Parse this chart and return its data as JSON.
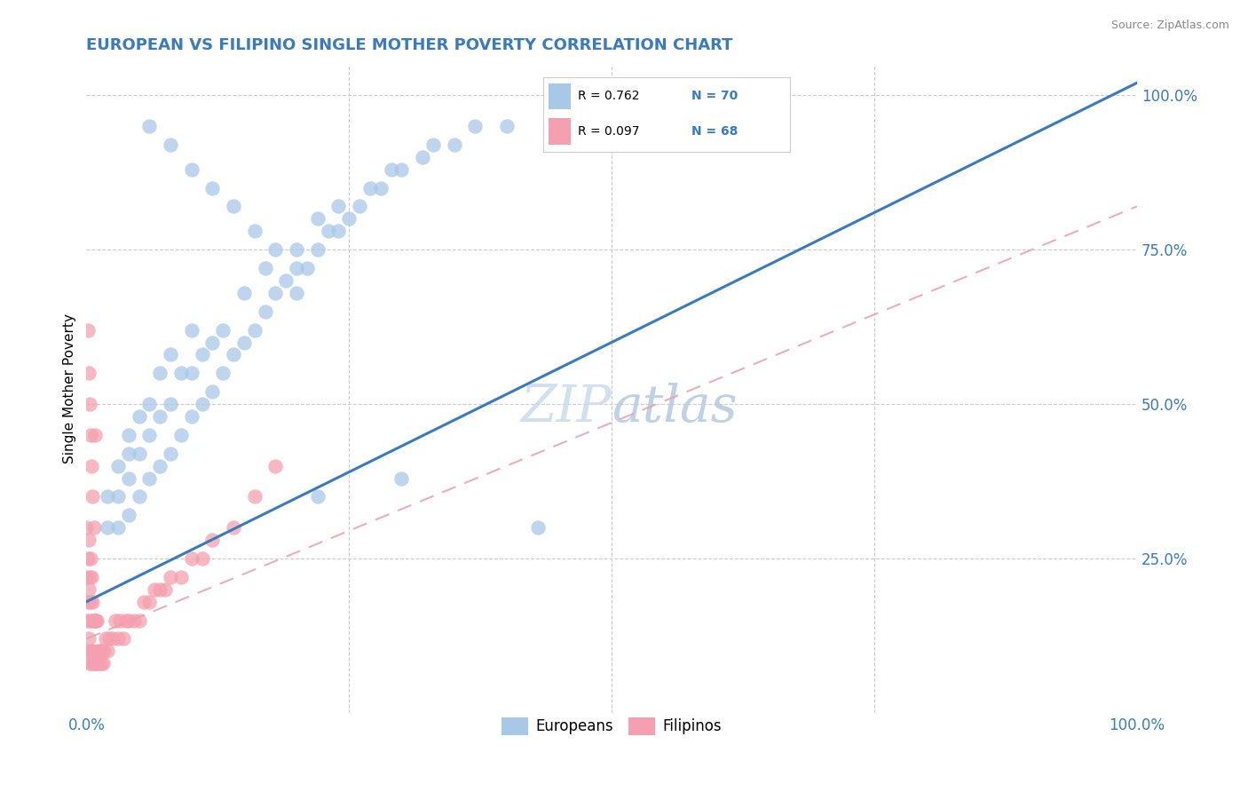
{
  "title": "EUROPEAN VS FILIPINO SINGLE MOTHER POVERTY CORRELATION CHART",
  "source": "Source: ZipAtlas.com",
  "ylabel": "Single Mother Poverty",
  "title_color": "#3a7abf",
  "tick_color": "#3a7abf",
  "watermark_color": "#ccdcee",
  "european_color": "#a8c8e8",
  "filipino_color": "#f5a0b0",
  "trend_blue": "#3a7abf",
  "trend_pink": "#e8a0b0",
  "eu_x": [
    0.02,
    0.02,
    0.03,
    0.03,
    0.03,
    0.04,
    0.04,
    0.04,
    0.04,
    0.05,
    0.05,
    0.05,
    0.06,
    0.06,
    0.06,
    0.07,
    0.07,
    0.07,
    0.08,
    0.08,
    0.08,
    0.09,
    0.09,
    0.1,
    0.1,
    0.1,
    0.11,
    0.11,
    0.12,
    0.12,
    0.13,
    0.13,
    0.14,
    0.15,
    0.15,
    0.16,
    0.17,
    0.17,
    0.18,
    0.19,
    0.2,
    0.2,
    0.21,
    0.22,
    0.22,
    0.23,
    0.24,
    0.24,
    0.25,
    0.26,
    0.27,
    0.28,
    0.29,
    0.3,
    0.32,
    0.33,
    0.35,
    0.37,
    0.4,
    0.43,
    0.06,
    0.08,
    0.1,
    0.12,
    0.14,
    0.16,
    0.18,
    0.2,
    0.22,
    0.3
  ],
  "eu_y": [
    0.3,
    0.35,
    0.3,
    0.35,
    0.4,
    0.32,
    0.38,
    0.42,
    0.45,
    0.35,
    0.42,
    0.48,
    0.38,
    0.45,
    0.5,
    0.4,
    0.48,
    0.55,
    0.42,
    0.5,
    0.58,
    0.45,
    0.55,
    0.48,
    0.55,
    0.62,
    0.5,
    0.58,
    0.52,
    0.6,
    0.55,
    0.62,
    0.58,
    0.6,
    0.68,
    0.62,
    0.65,
    0.72,
    0.68,
    0.7,
    0.68,
    0.75,
    0.72,
    0.75,
    0.8,
    0.78,
    0.78,
    0.82,
    0.8,
    0.82,
    0.85,
    0.85,
    0.88,
    0.88,
    0.9,
    0.92,
    0.92,
    0.95,
    0.95,
    0.3,
    0.95,
    0.92,
    0.88,
    0.85,
    0.82,
    0.78,
    0.75,
    0.72,
    0.35,
    0.38
  ],
  "fil_x": [
    0.0,
    0.0,
    0.0,
    0.001,
    0.001,
    0.001,
    0.002,
    0.002,
    0.002,
    0.003,
    0.003,
    0.003,
    0.004,
    0.004,
    0.004,
    0.005,
    0.005,
    0.005,
    0.006,
    0.006,
    0.007,
    0.007,
    0.008,
    0.008,
    0.009,
    0.009,
    0.01,
    0.01,
    0.011,
    0.012,
    0.013,
    0.014,
    0.015,
    0.016,
    0.017,
    0.018,
    0.02,
    0.022,
    0.025,
    0.028,
    0.03,
    0.032,
    0.035,
    0.038,
    0.04,
    0.045,
    0.05,
    0.055,
    0.06,
    0.065,
    0.07,
    0.075,
    0.08,
    0.09,
    0.1,
    0.11,
    0.12,
    0.14,
    0.16,
    0.18,
    0.001,
    0.002,
    0.003,
    0.004,
    0.005,
    0.006,
    0.007,
    0.008
  ],
  "fil_y": [
    0.15,
    0.22,
    0.3,
    0.1,
    0.18,
    0.25,
    0.12,
    0.2,
    0.28,
    0.08,
    0.15,
    0.22,
    0.1,
    0.18,
    0.25,
    0.08,
    0.15,
    0.22,
    0.1,
    0.18,
    0.08,
    0.15,
    0.08,
    0.15,
    0.08,
    0.15,
    0.08,
    0.15,
    0.1,
    0.08,
    0.1,
    0.08,
    0.1,
    0.08,
    0.1,
    0.12,
    0.1,
    0.12,
    0.12,
    0.15,
    0.12,
    0.15,
    0.12,
    0.15,
    0.15,
    0.15,
    0.15,
    0.18,
    0.18,
    0.2,
    0.2,
    0.2,
    0.22,
    0.22,
    0.25,
    0.25,
    0.28,
    0.3,
    0.35,
    0.4,
    0.62,
    0.55,
    0.5,
    0.45,
    0.4,
    0.35,
    0.3,
    0.45
  ],
  "eu_trend_x": [
    0.0,
    1.0
  ],
  "eu_trend_y": [
    0.18,
    1.02
  ],
  "fil_trend_x": [
    0.0,
    1.0
  ],
  "fil_trend_y": [
    0.12,
    0.82
  ],
  "xlim": [
    0.0,
    1.0
  ],
  "ylim": [
    0.0,
    1.05
  ],
  "right_yticks": [
    0.0,
    0.25,
    0.5,
    0.75,
    1.0
  ],
  "right_yticklabels": [
    "",
    "25.0%",
    "50.0%",
    "75.0%",
    "100.0%"
  ],
  "xtick_labels": [
    "0.0%",
    "",
    "",
    "",
    "100.0%"
  ],
  "xtick_positions": [
    0.0,
    0.25,
    0.5,
    0.75,
    1.0
  ],
  "bottom_legend_labels": [
    "Europeans",
    "Filipinos"
  ],
  "legend_r1_text": "R = 0.762",
  "legend_n1_text": "N = 70",
  "legend_r2_text": "R = 0.097",
  "legend_n2_text": "N = 68"
}
